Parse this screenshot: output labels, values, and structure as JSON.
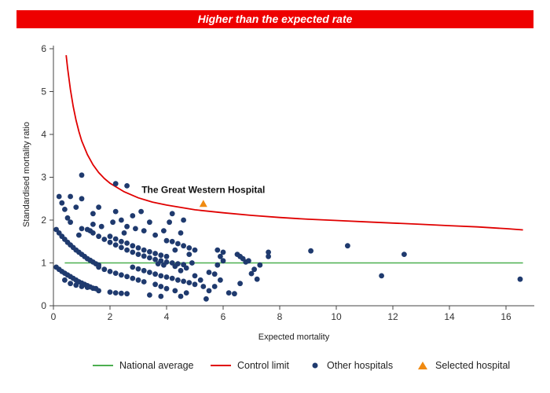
{
  "header": {
    "title": "Higher than the expected rate"
  },
  "chart_data": {
    "type": "scatter",
    "xlabel": "Expected mortality",
    "ylabel": "Standardised mortality ratio",
    "xlim": [
      0,
      17
    ],
    "ylim": [
      0,
      6
    ],
    "xticks": [
      "0",
      "2",
      "4",
      "6",
      "8",
      "10",
      "12",
      "14",
      "16"
    ],
    "yticks": [
      "0",
      "1",
      "2",
      "3",
      "4",
      "5",
      "6"
    ],
    "grid": false,
    "legend_position": "bottom",
    "national_average": {
      "name": "National average",
      "value": 1,
      "x_range": [
        0.4,
        16.6
      ],
      "color": "#4caf50"
    },
    "control_limit": {
      "name": "Control limit",
      "color": "#e00000",
      "points": [
        [
          0.45,
          5.85
        ],
        [
          0.5,
          5.55
        ],
        [
          0.6,
          5.05
        ],
        [
          0.7,
          4.65
        ],
        [
          0.8,
          4.33
        ],
        [
          0.9,
          4.07
        ],
        [
          1.0,
          3.85
        ],
        [
          1.2,
          3.53
        ],
        [
          1.4,
          3.29
        ],
        [
          1.6,
          3.11
        ],
        [
          1.8,
          2.97
        ],
        [
          2.0,
          2.86
        ],
        [
          2.5,
          2.66
        ],
        [
          3.0,
          2.52
        ],
        [
          3.5,
          2.42
        ],
        [
          4.0,
          2.35
        ],
        [
          5.0,
          2.24
        ],
        [
          6.0,
          2.17
        ],
        [
          7.0,
          2.11
        ],
        [
          8.0,
          2.06
        ],
        [
          9.0,
          2.02
        ],
        [
          10.0,
          1.99
        ],
        [
          11.0,
          1.96
        ],
        [
          12.0,
          1.93
        ],
        [
          13.0,
          1.9
        ],
        [
          14.0,
          1.87
        ],
        [
          15.0,
          1.84
        ],
        [
          16.0,
          1.8
        ],
        [
          16.6,
          1.77
        ]
      ]
    },
    "selected_hospital": {
      "name": "Selected hospital",
      "label": "The Great Western Hospital",
      "x": 5.3,
      "y": 2.38,
      "color": "#f08a10"
    },
    "other_hospitals": {
      "name": "Other hospitals",
      "color": "#1f3a6e",
      "points": [
        [
          0.2,
          2.55
        ],
        [
          0.6,
          2.55
        ],
        [
          0.3,
          2.4
        ],
        [
          0.4,
          2.25
        ],
        [
          0.8,
          2.3
        ],
        [
          1.0,
          2.5
        ],
        [
          0.5,
          2.05
        ],
        [
          0.6,
          1.95
        ],
        [
          1.0,
          3.05
        ],
        [
          2.2,
          2.85
        ],
        [
          2.6,
          2.8
        ],
        [
          1.4,
          2.15
        ],
        [
          1.6,
          2.3
        ],
        [
          2.2,
          2.2
        ],
        [
          2.8,
          2.1
        ],
        [
          3.1,
          2.2
        ],
        [
          4.2,
          2.15
        ],
        [
          4.6,
          2.0
        ],
        [
          4.1,
          1.95
        ],
        [
          3.4,
          1.95
        ],
        [
          2.4,
          2.0
        ],
        [
          2.1,
          1.95
        ],
        [
          1.4,
          1.9
        ],
        [
          1.0,
          1.8
        ],
        [
          1.7,
          1.85
        ],
        [
          2.6,
          1.85
        ],
        [
          2.9,
          1.8
        ],
        [
          3.2,
          1.75
        ],
        [
          3.9,
          1.75
        ],
        [
          3.6,
          1.65
        ],
        [
          4.5,
          1.7
        ],
        [
          2.5,
          1.7
        ],
        [
          0.9,
          1.65
        ],
        [
          1.3,
          1.75
        ],
        [
          0.1,
          1.78
        ],
        [
          0.2,
          1.7
        ],
        [
          0.3,
          1.62
        ],
        [
          0.4,
          1.55
        ],
        [
          0.5,
          1.48
        ],
        [
          0.6,
          1.42
        ],
        [
          0.7,
          1.36
        ],
        [
          0.8,
          1.3
        ],
        [
          0.9,
          1.25
        ],
        [
          1.0,
          1.2
        ],
        [
          1.1,
          1.15
        ],
        [
          1.2,
          1.1
        ],
        [
          1.3,
          1.06
        ],
        [
          1.4,
          1.02
        ],
        [
          1.5,
          0.98
        ],
        [
          1.6,
          0.95
        ],
        [
          1.2,
          1.78
        ],
        [
          1.4,
          1.7
        ],
        [
          1.6,
          1.62
        ],
        [
          1.8,
          1.55
        ],
        [
          2.0,
          1.48
        ],
        [
          2.2,
          1.42
        ],
        [
          2.4,
          1.36
        ],
        [
          2.6,
          1.3
        ],
        [
          2.8,
          1.25
        ],
        [
          3.0,
          1.2
        ],
        [
          3.2,
          1.16
        ],
        [
          3.4,
          1.12
        ],
        [
          3.6,
          1.08
        ],
        [
          3.8,
          1.05
        ],
        [
          4.0,
          1.02
        ],
        [
          4.2,
          1.0
        ],
        [
          4.4,
          0.98
        ],
        [
          4.6,
          0.96
        ],
        [
          2.0,
          1.62
        ],
        [
          2.2,
          1.56
        ],
        [
          2.4,
          1.5
        ],
        [
          2.6,
          1.46
        ],
        [
          2.8,
          1.4
        ],
        [
          3.0,
          1.35
        ],
        [
          3.2,
          1.3
        ],
        [
          3.4,
          1.26
        ],
        [
          3.6,
          1.22
        ],
        [
          3.8,
          1.18
        ],
        [
          4.0,
          1.15
        ],
        [
          4.0,
          1.52
        ],
        [
          4.2,
          1.5
        ],
        [
          4.4,
          1.45
        ],
        [
          4.6,
          1.4
        ],
        [
          4.8,
          1.35
        ],
        [
          5.0,
          1.3
        ],
        [
          4.8,
          1.2
        ],
        [
          4.3,
          1.3
        ],
        [
          0.1,
          0.9
        ],
        [
          0.2,
          0.85
        ],
        [
          0.3,
          0.8
        ],
        [
          0.4,
          0.76
        ],
        [
          0.5,
          0.72
        ],
        [
          0.6,
          0.68
        ],
        [
          0.7,
          0.64
        ],
        [
          0.8,
          0.6
        ],
        [
          0.9,
          0.56
        ],
        [
          1.0,
          0.53
        ],
        [
          1.1,
          0.5
        ],
        [
          1.2,
          0.47
        ],
        [
          1.3,
          0.44
        ],
        [
          1.4,
          0.41
        ],
        [
          0.4,
          0.6
        ],
        [
          0.6,
          0.52
        ],
        [
          0.8,
          0.48
        ],
        [
          1.0,
          0.45
        ],
        [
          1.2,
          0.43
        ],
        [
          1.5,
          0.4
        ],
        [
          1.6,
          0.9
        ],
        [
          1.8,
          0.85
        ],
        [
          2.0,
          0.8
        ],
        [
          2.2,
          0.76
        ],
        [
          2.4,
          0.72
        ],
        [
          2.6,
          0.68
        ],
        [
          2.8,
          0.64
        ],
        [
          3.0,
          0.6
        ],
        [
          3.2,
          0.56
        ],
        [
          1.6,
          0.35
        ],
        [
          2.0,
          0.32
        ],
        [
          2.2,
          0.3
        ],
        [
          2.4,
          0.29
        ],
        [
          2.6,
          0.28
        ],
        [
          2.8,
          0.9
        ],
        [
          3.0,
          0.86
        ],
        [
          3.2,
          0.82
        ],
        [
          3.4,
          0.78
        ],
        [
          3.6,
          0.74
        ],
        [
          3.8,
          0.7
        ],
        [
          4.0,
          0.67
        ],
        [
          4.2,
          0.64
        ],
        [
          4.4,
          0.6
        ],
        [
          4.6,
          0.57
        ],
        [
          4.8,
          0.54
        ],
        [
          3.6,
          0.5
        ],
        [
          3.8,
          0.45
        ],
        [
          4.0,
          0.4
        ],
        [
          3.4,
          0.25
        ],
        [
          3.8,
          0.22
        ],
        [
          4.3,
          0.35
        ],
        [
          4.5,
          0.22
        ],
        [
          4.7,
          0.3
        ],
        [
          5.0,
          0.7
        ],
        [
          5.2,
          0.6
        ],
        [
          5.5,
          0.78
        ],
        [
          5.7,
          0.74
        ],
        [
          5.0,
          0.5
        ],
        [
          5.3,
          0.45
        ],
        [
          5.5,
          0.35
        ],
        [
          5.4,
          0.16
        ],
        [
          4.9,
          1.0
        ],
        [
          4.7,
          0.88
        ],
        [
          4.5,
          0.82
        ],
        [
          4.3,
          0.92
        ],
        [
          3.9,
          0.95
        ],
        [
          3.7,
          0.98
        ],
        [
          5.8,
          1.3
        ],
        [
          6.0,
          1.25
        ],
        [
          5.9,
          1.15
        ],
        [
          6.0,
          1.05
        ],
        [
          5.8,
          0.95
        ],
        [
          5.9,
          0.6
        ],
        [
          5.7,
          0.45
        ],
        [
          6.2,
          0.3
        ],
        [
          6.4,
          0.28
        ],
        [
          6.5,
          1.2
        ],
        [
          6.6,
          1.15
        ],
        [
          6.7,
          1.1
        ],
        [
          6.9,
          1.05
        ],
        [
          6.8,
          1.02
        ],
        [
          6.6,
          0.52
        ],
        [
          7.0,
          0.75
        ],
        [
          7.1,
          0.85
        ],
        [
          7.2,
          0.62
        ],
        [
          7.3,
          0.95
        ],
        [
          7.6,
          1.25
        ],
        [
          7.6,
          1.15
        ],
        [
          9.1,
          1.28
        ],
        [
          10.4,
          1.4
        ],
        [
          11.6,
          0.7
        ],
        [
          12.4,
          1.2
        ],
        [
          16.5,
          0.62
        ]
      ]
    }
  }
}
